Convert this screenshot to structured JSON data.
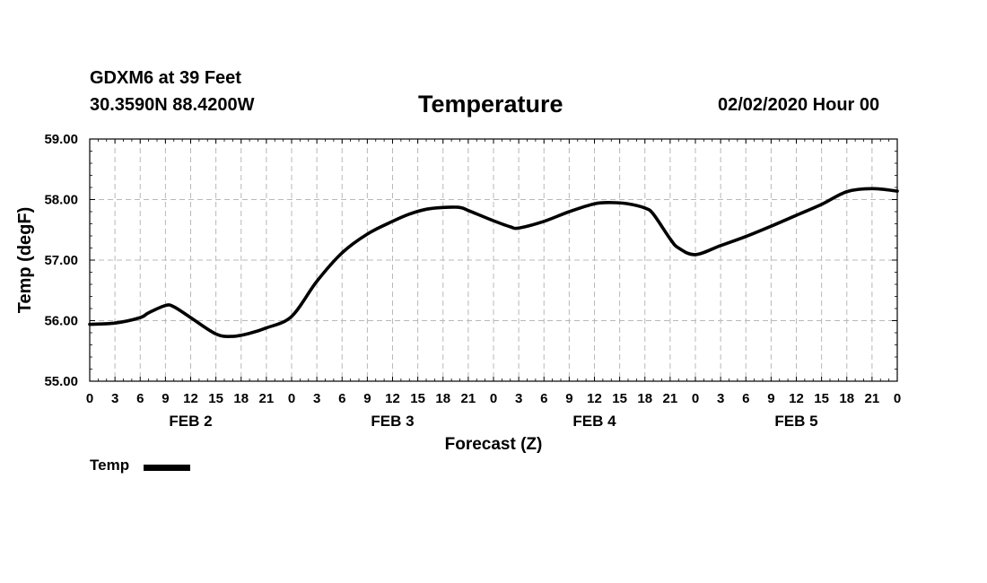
{
  "header": {
    "station": "GDXM6 at 39 Feet",
    "coords": "30.3590N 88.4200W",
    "title": "Temperature",
    "run_date": "02/02/2020 Hour 00"
  },
  "legend": {
    "label": "Temp"
  },
  "chart_data": {
    "type": "line",
    "title": "Temperature",
    "xlabel": "Forecast (Z)",
    "ylabel": "Temp (degF)",
    "ylim": [
      55.0,
      59.0
    ],
    "yticks": [
      "55.00",
      "56.00",
      "57.00",
      "58.00",
      "59.00"
    ],
    "x_range_hours": [
      0,
      96
    ],
    "x_tick_step_hours": 3,
    "x_tick_labels": [
      "0",
      "3",
      "6",
      "9",
      "12",
      "15",
      "18",
      "21",
      "0",
      "3",
      "6",
      "9",
      "12",
      "15",
      "18",
      "21",
      "0",
      "3",
      "6",
      "9",
      "12",
      "15",
      "18",
      "21",
      "0",
      "3",
      "6",
      "9",
      "12",
      "15",
      "18",
      "21",
      "0"
    ],
    "day_labels": [
      {
        "label": "FEB 2",
        "center_hour": 12
      },
      {
        "label": "FEB 3",
        "center_hour": 36
      },
      {
        "label": "FEB 4",
        "center_hour": 60
      },
      {
        "label": "FEB 5",
        "center_hour": 84
      }
    ],
    "grid": true,
    "legend_position": "bottom-left",
    "series": [
      {
        "name": "Temp",
        "color": "#000000",
        "x": [
          0,
          3,
          6,
          7,
          9,
          10,
          12,
          15,
          17,
          19,
          21,
          24,
          27,
          30,
          33,
          36,
          38,
          40,
          42,
          44,
          45,
          48,
          50,
          51,
          54,
          57,
          60,
          62,
          64,
          66,
          67,
          69,
          70,
          72,
          75,
          78,
          81,
          84,
          87,
          90,
          93,
          96
        ],
        "values": [
          55.94,
          55.96,
          56.05,
          56.13,
          56.25,
          56.23,
          56.05,
          55.78,
          55.74,
          55.79,
          55.88,
          56.07,
          56.65,
          57.12,
          57.43,
          57.64,
          57.76,
          57.84,
          57.87,
          57.87,
          57.82,
          57.65,
          57.55,
          57.53,
          57.64,
          57.8,
          57.93,
          57.95,
          57.93,
          57.86,
          57.76,
          57.35,
          57.2,
          57.09,
          57.24,
          57.39,
          57.56,
          57.74,
          57.92,
          58.13,
          58.18,
          58.14
        ]
      }
    ]
  }
}
